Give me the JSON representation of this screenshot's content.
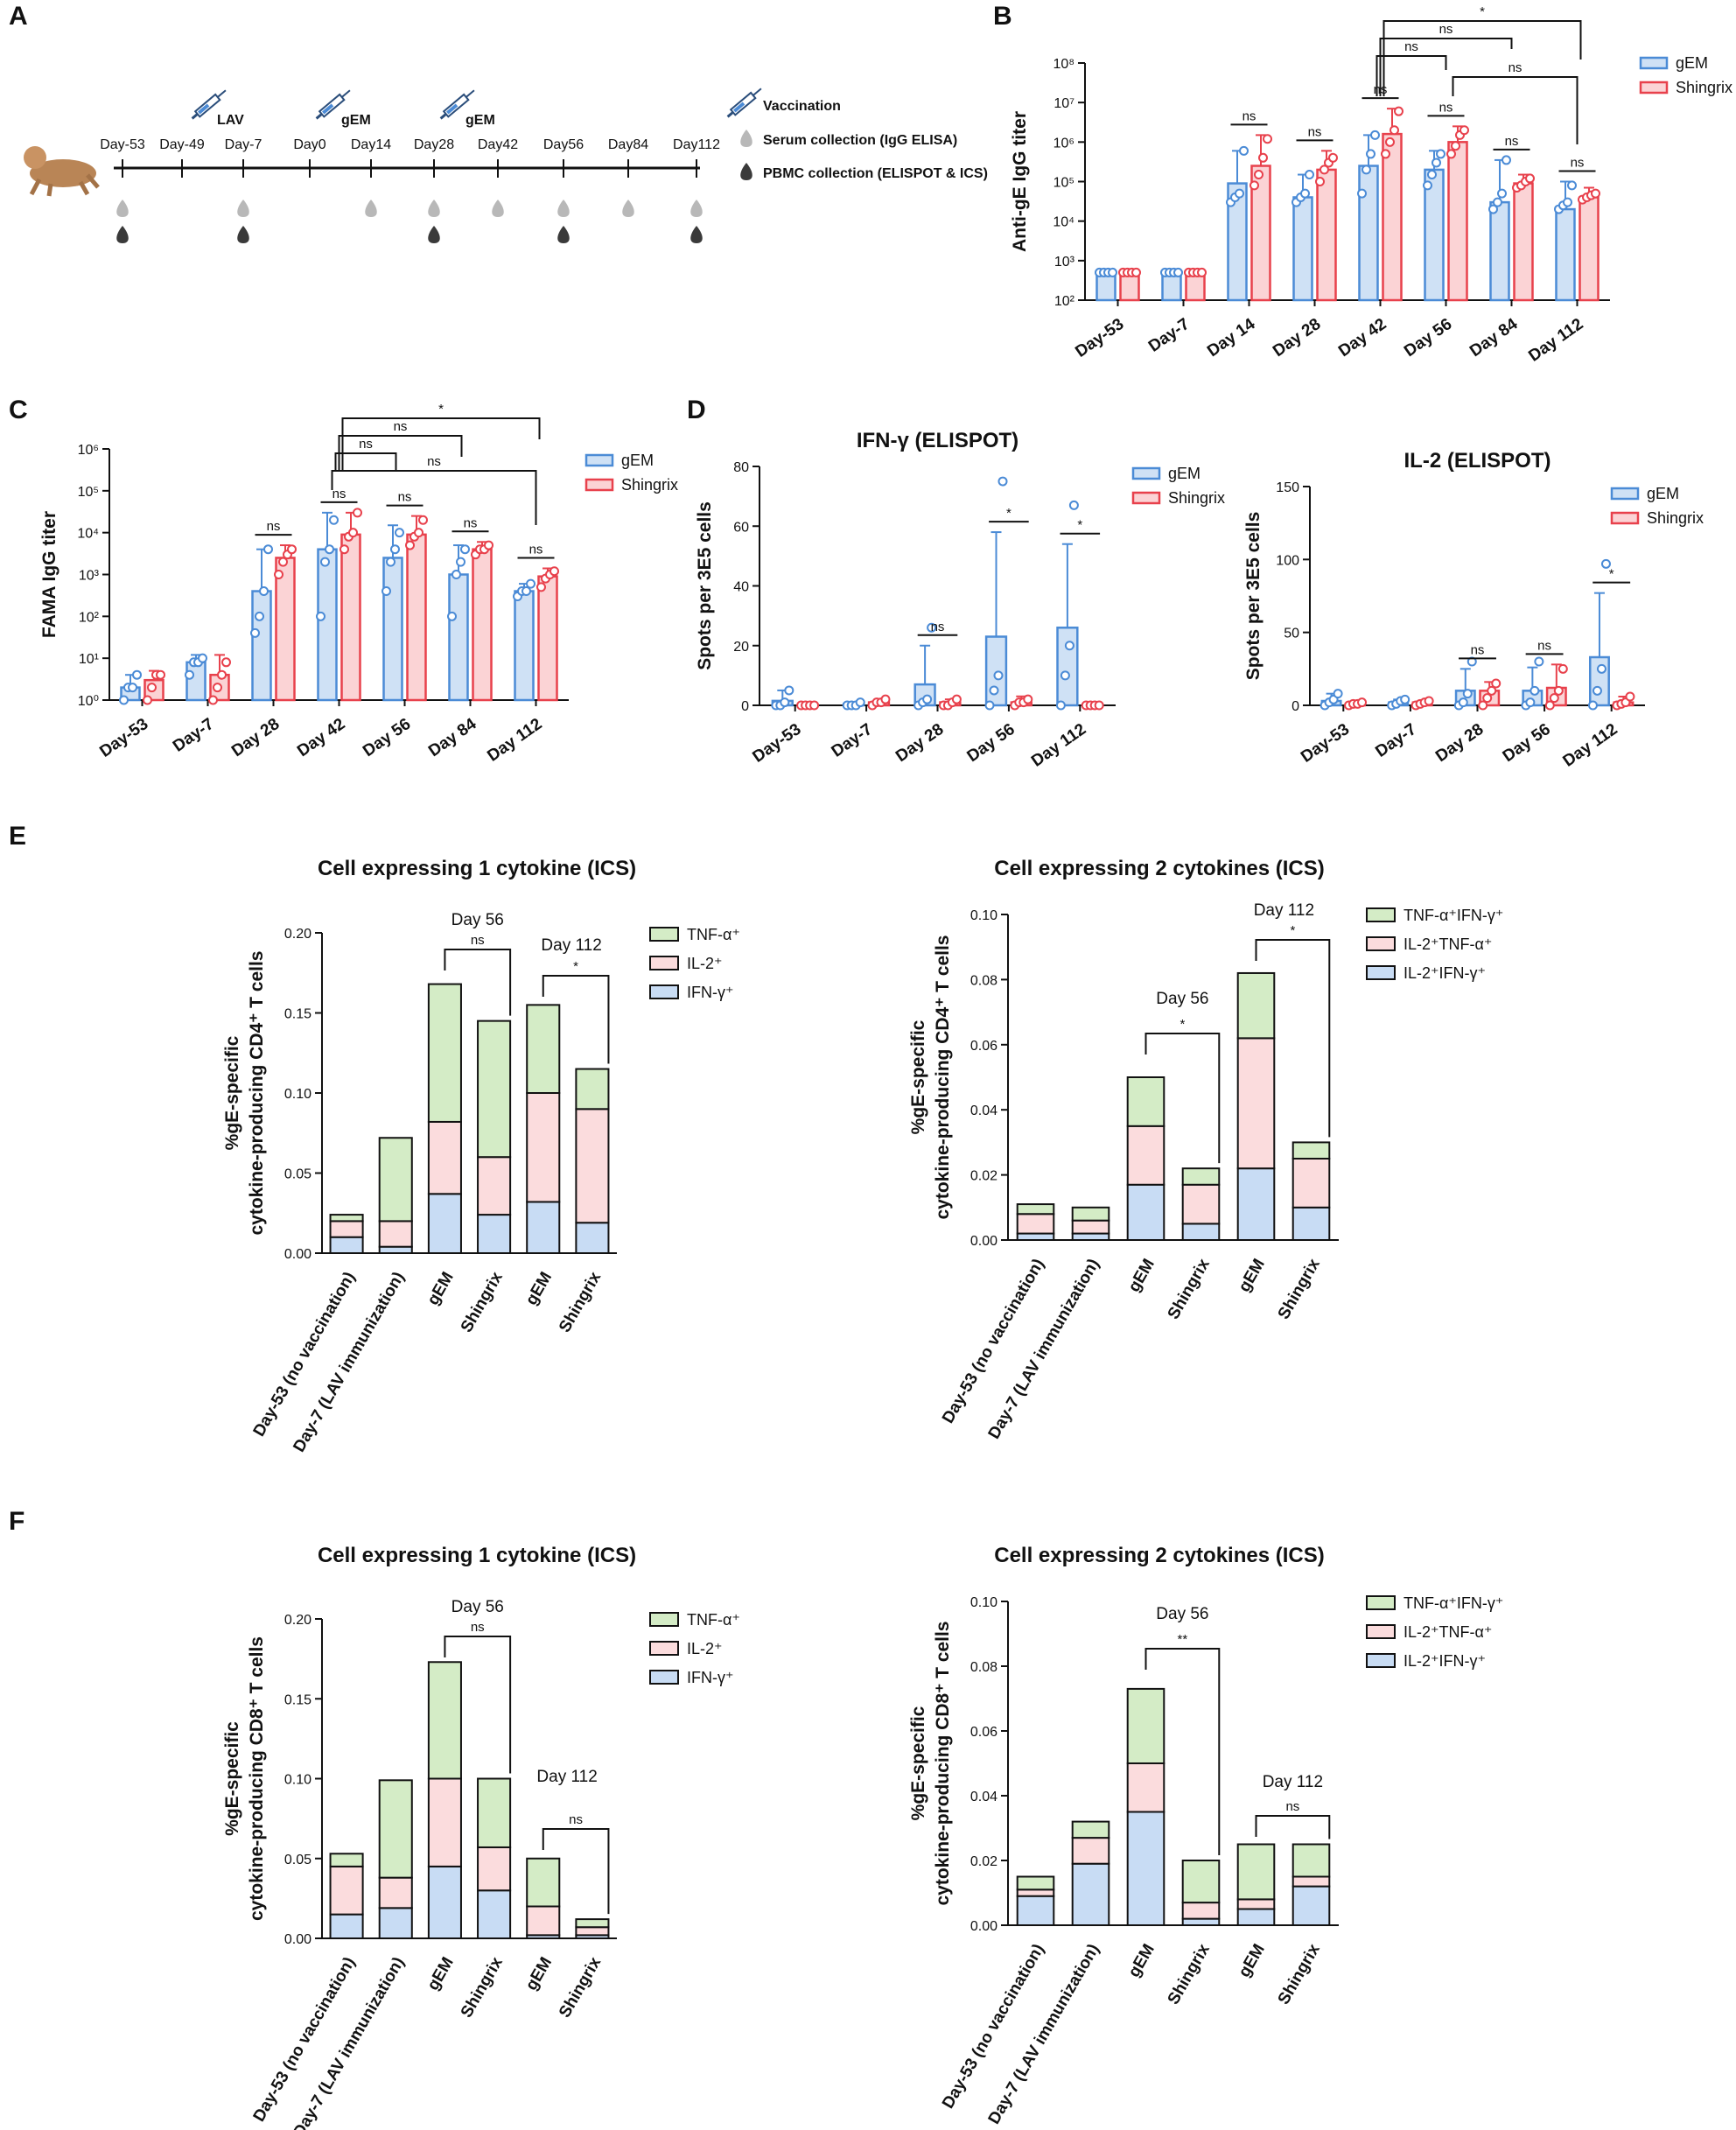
{
  "panel_letters": [
    "A",
    "B",
    "C",
    "D",
    "E",
    "F"
  ],
  "colors": {
    "gem": "#4b8bd6",
    "gem_fill": "#cfe1f5",
    "shingrix": "#e8414c",
    "shingrix_fill": "#fbd3d5",
    "tnf": "#d4ecc6",
    "il2": "#fbdcdd",
    "ifng": "#c8dcf4"
  },
  "timeline": {
    "days": [
      "Day-53",
      "Day-49",
      "Day-7",
      "Day0",
      "Day14",
      "Day28",
      "Day42",
      "Day56",
      "Day84",
      "Day112"
    ],
    "syringe_labels": [
      "LAV",
      "gEM",
      "gEM"
    ],
    "legend": [
      "Vaccination",
      "Serum collection (IgG ELISA)",
      "PBMC collection (ELISPOT & ICS)"
    ]
  },
  "chart_data": [
    {
      "id": "B",
      "type": "bar",
      "scale": "log",
      "title": "",
      "ylabel": "Anti-gE IgG titer",
      "ylim": [
        100,
        100000000
      ],
      "yticks": [
        "10²",
        "10³",
        "10⁴",
        "10⁵",
        "10⁶",
        "10⁷",
        "10⁸"
      ],
      "categories": [
        "Day-53",
        "Day-7",
        "Day 14",
        "Day 28",
        "Day 42",
        "Day 56",
        "Day 84",
        "Day 112"
      ],
      "series": [
        {
          "name": "gEM",
          "values": [
            500,
            500,
            90000,
            40000,
            250000,
            200000,
            30000,
            20000
          ],
          "errors": [
            500,
            500,
            600000,
            150000,
            1500000,
            600000,
            350000,
            100000
          ],
          "points": [
            [
              500,
              500,
              500,
              500
            ],
            [
              500,
              500,
              500,
              500
            ],
            [
              30000,
              40000,
              50000,
              600000
            ],
            [
              30000,
              40000,
              50000,
              150000
            ],
            [
              50000,
              200000,
              500000,
              1500000
            ],
            [
              80000,
              150000,
              300000,
              500000
            ],
            [
              20000,
              30000,
              50000,
              350000
            ],
            [
              20000,
              25000,
              30000,
              80000
            ]
          ]
        },
        {
          "name": "Shingrix",
          "values": [
            500,
            500,
            250000,
            200000,
            1600000,
            1000000,
            90000,
            40000
          ],
          "errors": [
            500,
            500,
            1500000,
            600000,
            7000000,
            2500000,
            150000,
            70000
          ],
          "points": [
            [
              500,
              500,
              500,
              500
            ],
            [
              500,
              500,
              500,
              500
            ],
            [
              80000,
              150000,
              400000,
              1200000
            ],
            [
              100000,
              200000,
              300000,
              400000
            ],
            [
              500000,
              1000000,
              2000000,
              6000000
            ],
            [
              500000,
              800000,
              1500000,
              2000000
            ],
            [
              70000,
              80000,
              100000,
              120000
            ],
            [
              35000,
              40000,
              45000,
              50000
            ]
          ]
        }
      ],
      "pair_labels": [
        "ns",
        "ns",
        "ns",
        "ns",
        "ns",
        "ns"
      ],
      "brackets": [
        [
          "Day 42",
          "Day 112",
          "*"
        ],
        [
          "Day 42",
          "Day 84",
          "ns"
        ],
        [
          "Day 42",
          "Day 56",
          "ns"
        ],
        [
          "Day 56",
          "Day 112",
          "ns"
        ]
      ],
      "legend": [
        "gEM",
        "Shingrix"
      ]
    },
    {
      "id": "C",
      "type": "bar",
      "scale": "log",
      "title": "",
      "ylabel": "FAMA IgG titer",
      "ylim": [
        1,
        1000000
      ],
      "yticks": [
        "10⁰",
        "10¹",
        "10²",
        "10³",
        "10⁴",
        "10⁵",
        "10⁶"
      ],
      "categories": [
        "Day-53",
        "Day-7",
        "Day 28",
        "Day 42",
        "Day 56",
        "Day 84",
        "Day 112"
      ],
      "series": [
        {
          "name": "gEM",
          "values": [
            2,
            8,
            400,
            4000,
            2500,
            1000,
            400
          ],
          "errors": [
            4,
            12,
            4000,
            30000,
            15000,
            5000,
            600
          ],
          "points": [
            [
              1,
              2,
              2,
              4
            ],
            [
              4,
              8,
              8,
              10
            ],
            [
              40,
              100,
              400,
              4000
            ],
            [
              100,
              2000,
              4000,
              20000
            ],
            [
              400,
              2000,
              4000,
              10000
            ],
            [
              100,
              1000,
              2000,
              4000
            ],
            [
              300,
              400,
              400,
              600
            ]
          ]
        },
        {
          "name": "Shingrix",
          "values": [
            3,
            4,
            2500,
            9000,
            9000,
            4000,
            900
          ],
          "errors": [
            5,
            12,
            5000,
            30000,
            25000,
            6000,
            1400
          ],
          "points": [
            [
              1,
              2,
              4,
              4
            ],
            [
              1,
              2,
              4,
              8
            ],
            [
              1000,
              2000,
              3000,
              4000
            ],
            [
              4000,
              8000,
              10000,
              30000
            ],
            [
              5000,
              8000,
              10000,
              20000
            ],
            [
              3000,
              4000,
              4000,
              5000
            ],
            [
              500,
              800,
              1000,
              1200
            ]
          ]
        }
      ],
      "pair_labels": [
        "ns",
        "ns",
        "ns",
        "ns",
        "ns"
      ],
      "brackets": [
        [
          "Day 42",
          "Day 112",
          "*"
        ],
        [
          "Day 42",
          "Day 84",
          "ns"
        ],
        [
          "Day 42",
          "Day 56",
          "ns"
        ],
        [
          "Day 42",
          "Day 112",
          "ns"
        ]
      ],
      "legend": [
        "gEM",
        "Shingrix"
      ]
    },
    {
      "id": "D1",
      "type": "bar",
      "scale": "linear",
      "title": "IFN-γ (ELISPOT)",
      "ylabel": "Spots per 3E5 cells",
      "ylim": [
        0,
        80
      ],
      "yticks": [
        "0",
        "20",
        "40",
        "60",
        "80"
      ],
      "categories": [
        "Day-53",
        "Day-7",
        "Day 28",
        "Day 56",
        "Day 112"
      ],
      "series": [
        {
          "name": "gEM",
          "values": [
            1.5,
            0.5,
            7,
            23,
            26
          ],
          "errors": [
            5,
            0.5,
            20,
            58,
            54
          ],
          "points": [
            [
              0,
              0,
              1,
              5
            ],
            [
              0,
              0,
              0,
              1
            ],
            [
              0,
              1,
              2,
              26
            ],
            [
              0,
              5,
              10,
              75
            ],
            [
              0,
              10,
              20,
              67
            ]
          ]
        },
        {
          "name": "Shingrix",
          "values": [
            0,
            1,
            1,
            1,
            0
          ],
          "errors": [
            0,
            2,
            2,
            3,
            0
          ],
          "points": [
            [
              0,
              0,
              0,
              0
            ],
            [
              0,
              1,
              1,
              2
            ],
            [
              0,
              0,
              1,
              2
            ],
            [
              0,
              1,
              1,
              2
            ],
            [
              0,
              0,
              0,
              0
            ]
          ]
        }
      ],
      "pair_labels": [
        "ns",
        "*",
        "*"
      ],
      "legend": [
        "gEM",
        "Shingrix"
      ]
    },
    {
      "id": "D2",
      "type": "bar",
      "scale": "linear",
      "title": "IL-2 (ELISPOT)",
      "ylabel": "Spots per 3E5 cells",
      "ylim": [
        0,
        150
      ],
      "yticks": [
        "0",
        "50",
        "100",
        "150"
      ],
      "categories": [
        "Day-53",
        "Day-7",
        "Day 28",
        "Day 56",
        "Day 112"
      ],
      "series": [
        {
          "name": "gEM",
          "values": [
            3,
            2,
            10,
            10,
            33
          ],
          "errors": [
            8,
            4,
            25,
            26,
            77
          ],
          "points": [
            [
              0,
              2,
              4,
              8
            ],
            [
              0,
              1,
              3,
              4
            ],
            [
              0,
              2,
              8,
              30
            ],
            [
              0,
              2,
              10,
              30
            ],
            [
              0,
              10,
              25,
              97
            ]
          ]
        },
        {
          "name": "Shingrix",
          "values": [
            1,
            2,
            10,
            12,
            2
          ],
          "errors": [
            2,
            3,
            16,
            28,
            6
          ],
          "points": [
            [
              0,
              1,
              1,
              2
            ],
            [
              0,
              1,
              2,
              3
            ],
            [
              0,
              5,
              10,
              15
            ],
            [
              0,
              5,
              10,
              25
            ],
            [
              0,
              1,
              2,
              6
            ]
          ]
        }
      ],
      "pair_labels": [
        "ns",
        "ns",
        "*"
      ],
      "legend": [
        "gEM",
        "Shingrix"
      ]
    },
    {
      "id": "E1",
      "type": "bar",
      "stacked": true,
      "title": "Cell expressing 1 cytokine (ICS)",
      "ylabel": "%gE-specific cytokine-producing CD4⁺ T cells",
      "ylim": [
        0,
        0.2
      ],
      "yticks": [
        "0.00",
        "0.05",
        "0.10",
        "0.15",
        "0.20"
      ],
      "categories": [
        "Day-53 (no vaccination)",
        "Day-7 (LAV immunization)",
        "gEM",
        "Shingrix",
        "gEM",
        "Shingrix"
      ],
      "series": [
        {
          "name": "IFN-γ⁺",
          "values": [
            0.01,
            0.004,
            0.037,
            0.024,
            0.032,
            0.019
          ]
        },
        {
          "name": "IL-2⁺",
          "values": [
            0.01,
            0.016,
            0.045,
            0.036,
            0.068,
            0.071
          ]
        },
        {
          "name": "TNF-α⁺",
          "values": [
            0.004,
            0.052,
            0.086,
            0.085,
            0.055,
            0.025
          ]
        }
      ],
      "comparisons": [
        [
          "Day 56",
          "ns"
        ],
        [
          "Day 112",
          "*"
        ]
      ]
    },
    {
      "id": "E2",
      "type": "bar",
      "stacked": true,
      "title": "Cell expressing 2 cytokines (ICS)",
      "ylabel": "%gE-specific cytokine-producing CD4⁺ T cells",
      "ylim": [
        0,
        0.1
      ],
      "yticks": [
        "0.00",
        "0.02",
        "0.04",
        "0.06",
        "0.08",
        "0.10"
      ],
      "categories": [
        "Day-53 (no vaccination)",
        "Day-7 (LAV immunization)",
        "gEM",
        "Shingrix",
        "gEM",
        "Shingrix"
      ],
      "series": [
        {
          "name": "IL-2⁺IFN-γ⁺",
          "values": [
            0.002,
            0.002,
            0.017,
            0.005,
            0.022,
            0.01
          ]
        },
        {
          "name": "IL-2⁺TNF-α⁺",
          "values": [
            0.006,
            0.004,
            0.018,
            0.012,
            0.04,
            0.015
          ]
        },
        {
          "name": "TNF-α⁺IFN-γ⁺",
          "values": [
            0.003,
            0.004,
            0.015,
            0.005,
            0.02,
            0.005
          ]
        }
      ],
      "comparisons": [
        [
          "Day 56",
          "*"
        ],
        [
          "Day 112",
          "*"
        ]
      ]
    },
    {
      "id": "F1",
      "type": "bar",
      "stacked": true,
      "title": "Cell expressing 1 cytokine (ICS)",
      "ylabel": "%gE-specific cytokine-producing CD8⁺ T cells",
      "ylim": [
        0,
        0.2
      ],
      "yticks": [
        "0.00",
        "0.05",
        "0.10",
        "0.15",
        "0.20"
      ],
      "categories": [
        "Day-53 (no vaccination)",
        "Day-7 (LAV immunization)",
        "gEM",
        "Shingrix",
        "gEM",
        "Shingrix"
      ],
      "series": [
        {
          "name": "IFN-γ⁺",
          "values": [
            0.015,
            0.019,
            0.045,
            0.03,
            0.002,
            0.002
          ]
        },
        {
          "name": "IL-2⁺",
          "values": [
            0.03,
            0.019,
            0.055,
            0.027,
            0.018,
            0.005
          ]
        },
        {
          "name": "TNF-α⁺",
          "values": [
            0.008,
            0.061,
            0.073,
            0.043,
            0.03,
            0.005
          ]
        }
      ],
      "comparisons": [
        [
          "Day 56",
          "ns"
        ],
        [
          "Day 112",
          "ns"
        ]
      ]
    },
    {
      "id": "F2",
      "type": "bar",
      "stacked": true,
      "title": "Cell expressing 2 cytokines (ICS)",
      "ylabel": "%gE-specific cytokine-producing CD8⁺ T cells",
      "ylim": [
        0,
        0.1
      ],
      "yticks": [
        "0.00",
        "0.02",
        "0.04",
        "0.06",
        "0.08",
        "0.10"
      ],
      "categories": [
        "Day-53 (no vaccination)",
        "Day-7 (LAV immunization)",
        "gEM",
        "Shingrix",
        "gEM",
        "Shingrix"
      ],
      "series": [
        {
          "name": "IL-2⁺IFN-γ⁺",
          "values": [
            0.009,
            0.019,
            0.035,
            0.002,
            0.005,
            0.012
          ]
        },
        {
          "name": "IL-2⁺TNF-α⁺",
          "values": [
            0.002,
            0.008,
            0.015,
            0.005,
            0.003,
            0.003
          ]
        },
        {
          "name": "TNF-α⁺IFN-γ⁺",
          "values": [
            0.004,
            0.005,
            0.023,
            0.013,
            0.017,
            0.01
          ]
        }
      ],
      "comparisons": [
        [
          "Day 56",
          "**"
        ],
        [
          "Day 112",
          "ns"
        ]
      ]
    }
  ]
}
